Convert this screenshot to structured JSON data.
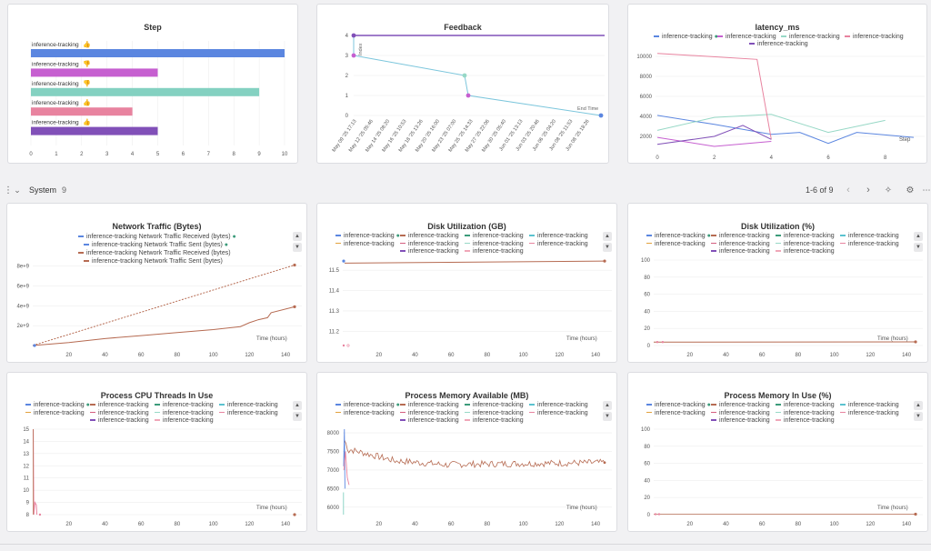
{
  "colors": {
    "blue": "#5b86e0",
    "purple": "#c65fd0",
    "teal": "#84d1c1",
    "pink": "#e8839f",
    "violet": "#8150b8",
    "brown": "#b66b52",
    "green": "#3b9b7a",
    "orange": "#e2a23d",
    "cyan": "#5ac2cf",
    "red": "#d45d7f",
    "lightteal": "#97d8c6",
    "lightpink": "#f0a7b8"
  },
  "step_panel": {
    "title": "Step",
    "rows": [
      {
        "label": "inference-tracking",
        "icon": "thumbs-up-icon",
        "value": 10
      },
      {
        "label": "inference-tracking",
        "icon": "thumbs-down-icon",
        "value": 5
      },
      {
        "label": "inference-tracking",
        "icon": "thumbs-down-icon",
        "value": 9
      },
      {
        "label": "inference-tracking",
        "icon": "thumbs-up-icon",
        "value": 4
      },
      {
        "label": "inference-tracking",
        "icon": "thumbs-up-icon",
        "value": 5
      }
    ],
    "ticks": [
      "0",
      "1",
      "2",
      "3",
      "4",
      "5",
      "6",
      "7",
      "8",
      "9",
      "10"
    ]
  },
  "feedback_panel": {
    "title": "Feedback",
    "y_ticks": [
      "0",
      "1",
      "2",
      "3",
      "4"
    ],
    "y_label": "Index",
    "x_end_label": "End Time",
    "x_ticks": [
      "May 09 '25 17:13",
      "May 12 '25 05:46",
      "May 14 '25 08:20",
      "May 16 '25 10:53",
      "May 18 '25 13:26",
      "May 20 '25 16:00",
      "May 23 '25 07:00",
      "May 25 '25 14:33",
      "May 27 '25 22:06",
      "May 30 '25 05:40",
      "Jun 01 '25 13:13",
      "Jun 03 '25 20:46",
      "Jun 06 '25 04:20",
      "Jun 08 '25 11:53",
      "Jun 08 '25 18:26"
    ]
  },
  "latency_panel": {
    "title": "latency_ms",
    "legend": [
      "inference-tracking",
      "inference-tracking",
      "inference-tracking",
      "inference-tracking",
      "inference-tracking"
    ],
    "y_ticks": [
      "10000",
      "8000",
      "6000",
      "4000",
      "2000"
    ],
    "x_ticks": [
      "0",
      "2",
      "4",
      "6",
      "8"
    ],
    "x_label": "Step"
  },
  "system_bar": {
    "title": "System",
    "count": "9",
    "pagination": "1-6 of 9"
  },
  "network_panel": {
    "title": "Network Traffic (Bytes)",
    "legend": [
      "inference-tracking Network Traffic Received (bytes)",
      "inference-tracking Network Traffic Sent (bytes)",
      "inference-tracking Network Traffic Received (bytes)",
      "inference-tracking Network Traffic Sent (bytes)"
    ],
    "y_ticks": [
      "8e+9",
      "6e+9",
      "4e+9",
      "2e+9"
    ],
    "x_ticks": [
      "20",
      "40",
      "60",
      "80",
      "100",
      "120",
      "140"
    ],
    "x_label": "Time (hours)"
  },
  "disk_gb_panel": {
    "title": "Disk Utilization (GB)",
    "y_ticks": [
      "11.5",
      "11.4",
      "11.3",
      "11.2"
    ],
    "x_ticks": [
      "20",
      "40",
      "60",
      "80",
      "100",
      "120",
      "140"
    ],
    "x_label": "Time (hours)"
  },
  "disk_pct_panel": {
    "title": "Disk Utilization (%)",
    "y_ticks": [
      "100",
      "80",
      "60",
      "40",
      "20",
      "0"
    ],
    "x_ticks": [
      "20",
      "40",
      "60",
      "80",
      "100",
      "120",
      "140"
    ],
    "x_label": "Time (hours)"
  },
  "cpu_panel": {
    "title": "Process CPU Threads In Use",
    "y_ticks": [
      "15",
      "14",
      "13",
      "12",
      "11",
      "10",
      "9",
      "8"
    ],
    "x_ticks": [
      "20",
      "40",
      "60",
      "80",
      "100",
      "120",
      "140"
    ],
    "x_label": "Time (hours)"
  },
  "mem_avail_panel": {
    "title": "Process Memory Available (MB)",
    "y_ticks": [
      "8000",
      "7500",
      "7000",
      "6500",
      "6000"
    ],
    "x_ticks": [
      "20",
      "40",
      "60",
      "80",
      "100",
      "120",
      "140"
    ],
    "x_label": "Time (hours)"
  },
  "mem_pct_panel": {
    "title": "Process Memory In Use (%)",
    "y_ticks": [
      "100",
      "80",
      "60",
      "40",
      "20",
      "0"
    ],
    "x_ticks": [
      "20",
      "40",
      "60",
      "80",
      "100",
      "120",
      "140"
    ],
    "x_label": "Time (hours)"
  },
  "multi_legend": [
    "inference-tracking",
    "inference-tracking",
    "inference-tracking",
    "inference-tracking",
    "inference-tracking",
    "inference-tracking",
    "inference-tracking",
    "inference-tracking",
    "inference-tracking",
    "inference-tracking"
  ]
}
